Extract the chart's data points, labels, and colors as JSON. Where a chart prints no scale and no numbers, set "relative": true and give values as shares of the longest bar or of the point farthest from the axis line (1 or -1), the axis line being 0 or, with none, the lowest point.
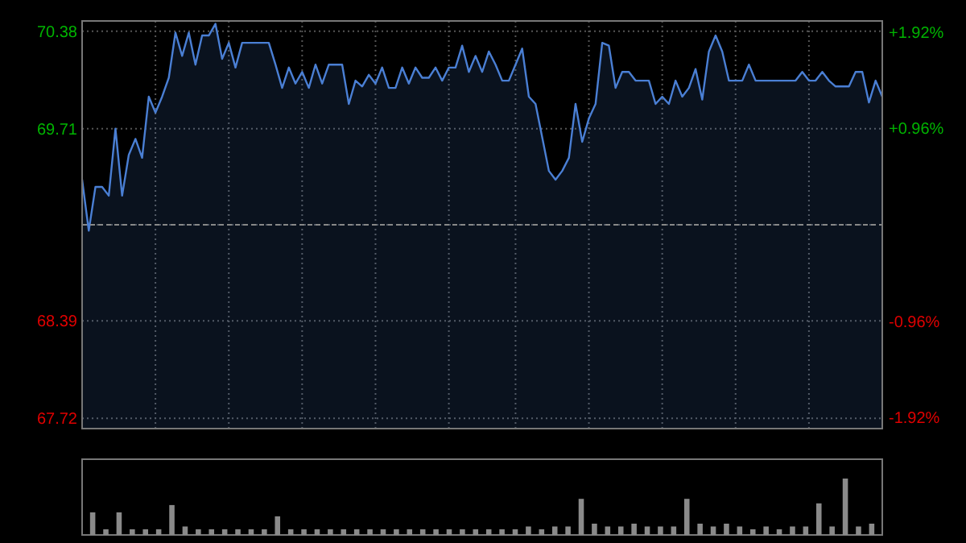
{
  "chart_data": [
    {
      "type": "area",
      "categories": [
        null,
        null,
        null,
        null,
        null,
        null,
        null,
        null,
        null,
        null,
        null,
        null,
        null,
        null,
        null,
        null,
        null,
        null,
        null,
        null,
        null,
        null,
        null,
        null,
        null,
        null,
        null,
        null,
        null,
        null,
        null,
        null,
        null,
        null,
        null,
        null,
        null,
        null,
        null,
        null,
        null,
        null,
        null,
        null,
        null,
        null,
        null,
        null,
        null,
        null,
        null,
        null,
        null,
        null,
        null,
        null,
        null,
        null,
        null,
        null,
        null,
        null,
        null,
        null,
        null,
        null,
        null,
        null,
        null,
        null,
        null,
        null,
        null,
        null,
        null,
        null,
        null,
        null,
        null,
        null,
        null,
        null,
        null,
        null,
        null,
        null,
        null,
        null,
        null,
        null,
        null,
        null,
        null,
        null,
        null,
        null,
        null,
        null,
        null,
        null,
        null,
        null,
        null,
        null,
        null,
        null,
        null,
        null,
        null,
        null,
        null,
        null,
        null,
        null,
        null,
        null,
        null,
        null,
        null,
        null,
        null
      ],
      "ylim": [
        67.65,
        70.45
      ],
      "yticks": [
        67.72,
        68.39,
        {
          "value": 69.05,
          "label": null
        },
        69.71,
        70.38
      ],
      "y2lim": [
        -2.03,
        2.03
      ],
      "y2ticks": [
        {
          "value": -1.92,
          "label": "-1.92%"
        },
        {
          "value": -0.96,
          "label": "-0.96%"
        },
        {
          "value": 0.96,
          "label": "+0.96%"
        },
        {
          "value": 1.92,
          "label": "+1.92%"
        }
      ],
      "grid": true,
      "ref_lines": [
        {
          "axis": "y",
          "value": 69.05
        }
      ],
      "series": [
        {
          "color": "#4a7fd4",
          "values": [
            69.36,
            69.01,
            69.31,
            69.31,
            69.25,
            69.71,
            69.25,
            69.53,
            69.64,
            69.51,
            69.93,
            69.82,
            69.93,
            70.06,
            70.37,
            70.21,
            70.37,
            70.15,
            70.35,
            70.35,
            70.43,
            70.19,
            70.3,
            70.13,
            70.3,
            70.3,
            70.3,
            70.3,
            70.3,
            70.15,
            69.99,
            70.13,
            70.02,
            70.1,
            69.99,
            70.15,
            70.02,
            70.15,
            70.15,
            70.15,
            69.88,
            70.04,
            70.0,
            70.08,
            70.02,
            70.13,
            69.99,
            69.99,
            70.13,
            70.02,
            70.13,
            70.06,
            70.06,
            70.13,
            70.04,
            70.13,
            70.13,
            70.28,
            70.1,
            70.21,
            70.1,
            70.24,
            70.15,
            70.04,
            70.04,
            70.15,
            70.26,
            69.93,
            69.88,
            69.65,
            69.42,
            69.36,
            69.42,
            69.51,
            69.88,
            69.62,
            69.78,
            69.88,
            70.3,
            70.28,
            69.99,
            70.1,
            70.1,
            70.04,
            70.04,
            70.04,
            69.88,
            69.93,
            69.88,
            70.04,
            69.93,
            69.99,
            70.12,
            69.91,
            70.24,
            70.35,
            70.24,
            70.04,
            70.04,
            70.04,
            70.15,
            70.04,
            70.04,
            70.04,
            70.04,
            70.04,
            70.04,
            70.04,
            70.1,
            70.04,
            70.04,
            70.1,
            70.04,
            70.0,
            70.0,
            70.0,
            70.1,
            70.1,
            69.89,
            70.04,
            69.93
          ]
        }
      ]
    },
    {
      "type": "bar",
      "relative": true,
      "color": "#8a8a8a",
      "categories": [
        null,
        null,
        null,
        null,
        null,
        null,
        null,
        null,
        null,
        null,
        null,
        null,
        null,
        null,
        null,
        null,
        null,
        null,
        null,
        null,
        null,
        null,
        null,
        null,
        null,
        null,
        null,
        null,
        null,
        null,
        null,
        null,
        null,
        null,
        null,
        null,
        null,
        null,
        null,
        null,
        null,
        null,
        null,
        null,
        null,
        null,
        null,
        null,
        null,
        null,
        null,
        null,
        null,
        null,
        null,
        null,
        null,
        null,
        null,
        null
      ],
      "values": [
        0.4,
        0.1,
        0.4,
        0.1,
        0.1,
        0.1,
        0.53,
        0.15,
        0.1,
        0.1,
        0.1,
        0.1,
        0.1,
        0.1,
        0.33,
        0.1,
        0.1,
        0.1,
        0.1,
        0.1,
        0.1,
        0.1,
        0.1,
        0.1,
        0.1,
        0.1,
        0.1,
        0.1,
        0.1,
        0.1,
        0.1,
        0.1,
        0.1,
        0.15,
        0.1,
        0.15,
        0.15,
        0.64,
        0.2,
        0.15,
        0.15,
        0.2,
        0.15,
        0.15,
        0.15,
        0.64,
        0.2,
        0.15,
        0.2,
        0.15,
        0.1,
        0.15,
        0.1,
        0.15,
        0.15,
        0.56,
        0.15,
        1,
        0.15,
        0.2
      ]
    }
  ]
}
